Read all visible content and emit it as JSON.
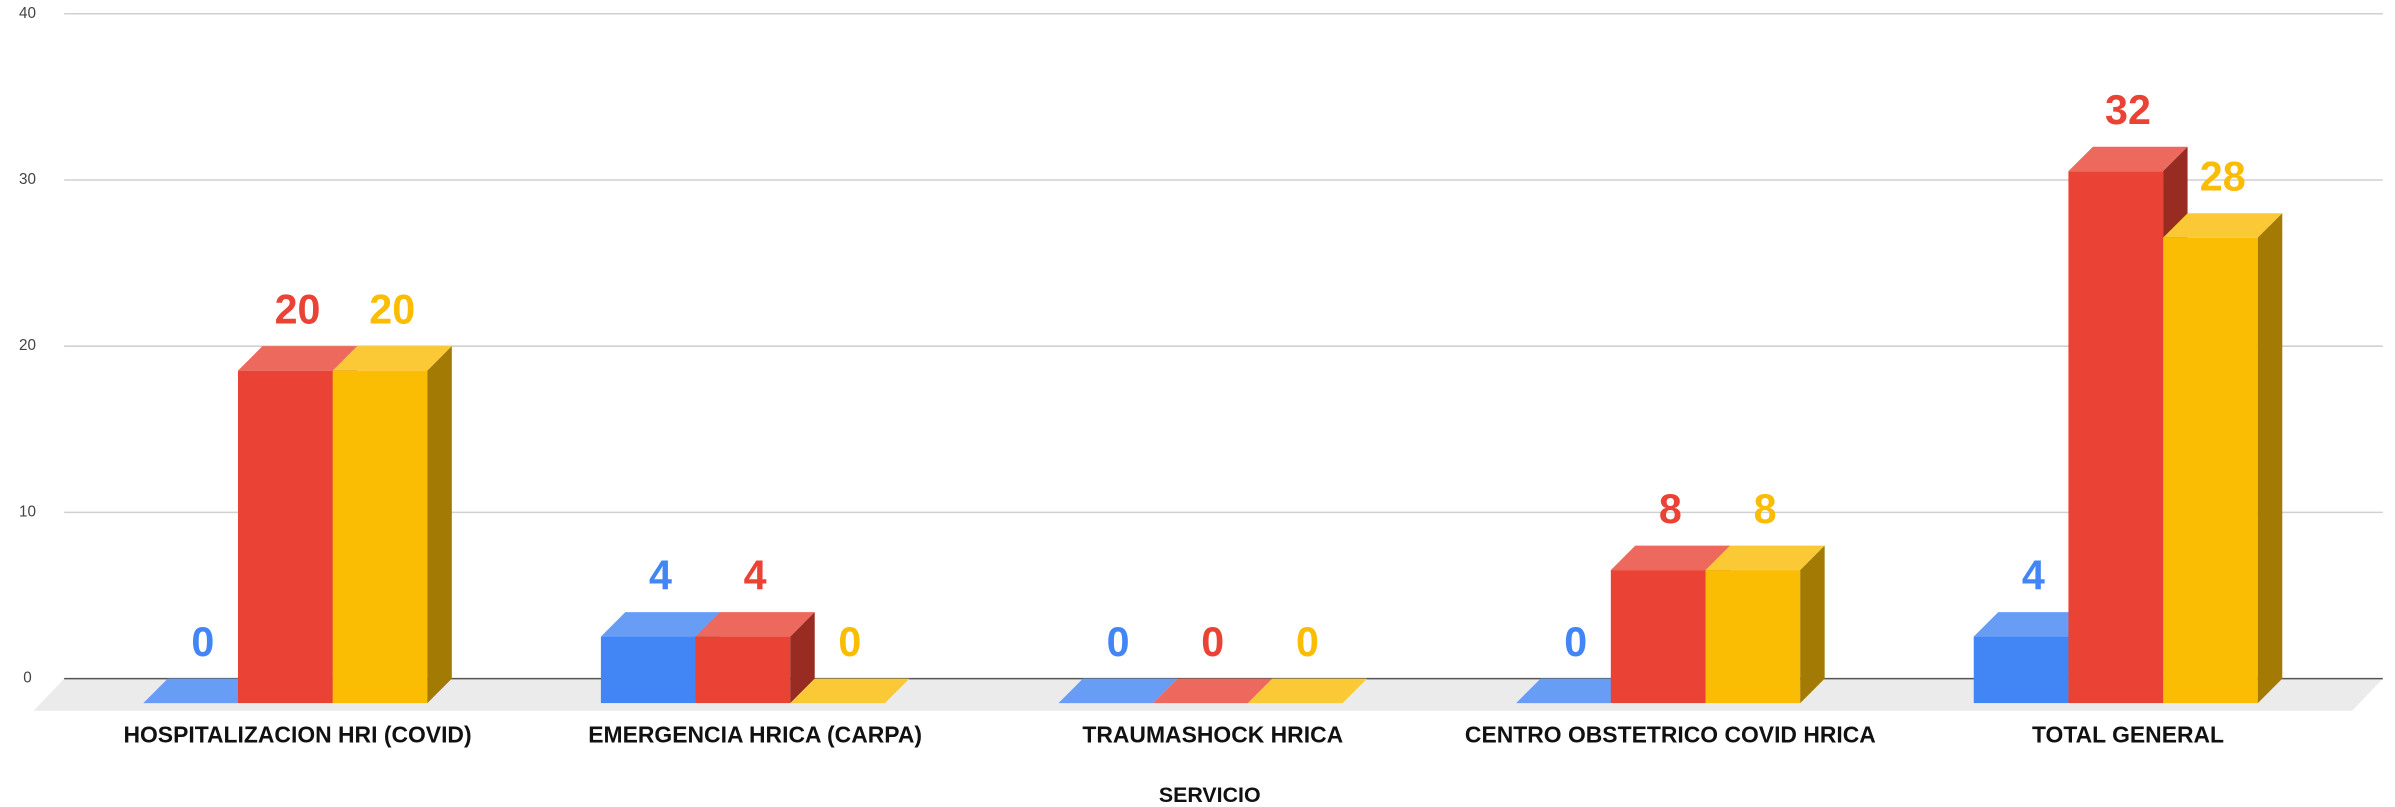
{
  "chart_data": {
    "type": "bar3d",
    "x_label": "SERVICIO",
    "categories": [
      "HOSPITALIZACION HRI (COVID)",
      "EMERGENCIA HRICA (CARPA)",
      "TRAUMASHOCK HRICA",
      "CENTRO OBSTETRICO COVID HRICA",
      "TOTAL GENERAL"
    ],
    "series": [
      {
        "color": "#4285f4",
        "values": [
          0,
          4,
          0,
          0,
          4
        ]
      },
      {
        "color": "#ea4335",
        "values": [
          20,
          4,
          0,
          8,
          32
        ]
      },
      {
        "color": "#fbbc04",
        "values": [
          20,
          0,
          0,
          8,
          28
        ]
      }
    ],
    "ylim": [
      0,
      40
    ],
    "yticks": [
      0,
      10,
      20,
      30,
      40
    ],
    "grid": true
  }
}
